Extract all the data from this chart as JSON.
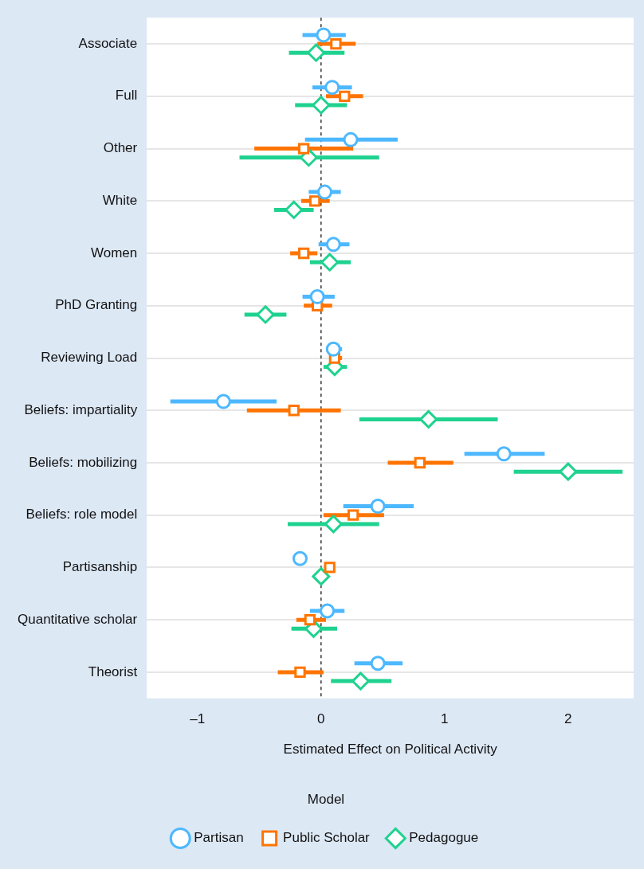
{
  "chart_data": {
    "type": "scatter",
    "orientation": "horizontal",
    "xlabel": "Estimated Effect on Political Activity",
    "legend_title": "Model",
    "legend": "bottom",
    "grid": "y",
    "categories": [
      "Associate",
      "Full",
      "Other",
      "White",
      "Women",
      "PhD Granting",
      "Reviewing Load",
      "Beliefs: impartiality",
      "Beliefs: mobilizing",
      "Beliefs: role model",
      "Partisanship",
      "Quantitative scholar",
      "Theorist"
    ],
    "xlim": [
      -1.41,
      2.53
    ],
    "xticks": [
      {
        "value": -1,
        "label": "–1"
      },
      0,
      1,
      2
    ],
    "ref_lines": [
      {
        "axis": "x",
        "value": 0,
        "color": "#333333",
        "line_style": "dashed"
      }
    ],
    "series": [
      {
        "name": "Partisan",
        "color": "#4db8ff",
        "marker": "circle",
        "values": [
          0.02,
          0.09,
          0.24,
          0.03,
          0.1,
          -0.03,
          0.1,
          -0.79,
          1.48,
          0.46,
          -0.17,
          0.05,
          0.46
        ],
        "errors": [
          [
            -0.15,
            0.2
          ],
          [
            -0.07,
            0.25
          ],
          [
            -0.13,
            0.62
          ],
          [
            -0.1,
            0.16
          ],
          [
            -0.02,
            0.23
          ],
          [
            -0.15,
            0.11
          ],
          [
            0.04,
            0.17
          ],
          [
            -1.22,
            -0.36
          ],
          [
            1.16,
            1.81
          ],
          [
            0.18,
            0.75
          ],
          null,
          [
            -0.09,
            0.19
          ],
          [
            0.27,
            0.66
          ]
        ]
      },
      {
        "name": "Public Scholar",
        "color": "#ff7400",
        "marker": "square",
        "values": [
          0.12,
          0.19,
          -0.14,
          -0.05,
          -0.14,
          -0.03,
          0.11,
          -0.22,
          0.8,
          0.26,
          0.07,
          -0.09,
          -0.17
        ],
        "errors": [
          [
            -0.03,
            0.28
          ],
          [
            0.04,
            0.34
          ],
          [
            -0.54,
            0.26
          ],
          [
            -0.16,
            0.07
          ],
          [
            -0.25,
            -0.03
          ],
          [
            -0.14,
            0.09
          ],
          [
            0.07,
            0.17
          ],
          [
            -0.6,
            0.16
          ],
          [
            0.54,
            1.07
          ],
          [
            0.02,
            0.51
          ],
          null,
          [
            -0.2,
            0.04
          ],
          [
            -0.35,
            0.02
          ]
        ]
      },
      {
        "name": "Pedagogue",
        "color": "#1fd28f",
        "marker": "diamond",
        "values": [
          -0.04,
          0.0,
          -0.1,
          -0.22,
          0.07,
          -0.45,
          0.11,
          0.87,
          2.0,
          0.1,
          0.0,
          -0.06,
          0.32
        ],
        "errors": [
          [
            -0.26,
            0.19
          ],
          [
            -0.21,
            0.21
          ],
          [
            -0.66,
            0.47
          ],
          [
            -0.38,
            -0.06
          ],
          [
            -0.09,
            0.24
          ],
          [
            -0.62,
            -0.28
          ],
          [
            0.02,
            0.21
          ],
          [
            0.31,
            1.43
          ],
          [
            1.56,
            2.44
          ],
          [
            -0.27,
            0.47
          ],
          null,
          [
            -0.24,
            0.13
          ],
          [
            0.08,
            0.57
          ]
        ]
      }
    ]
  }
}
